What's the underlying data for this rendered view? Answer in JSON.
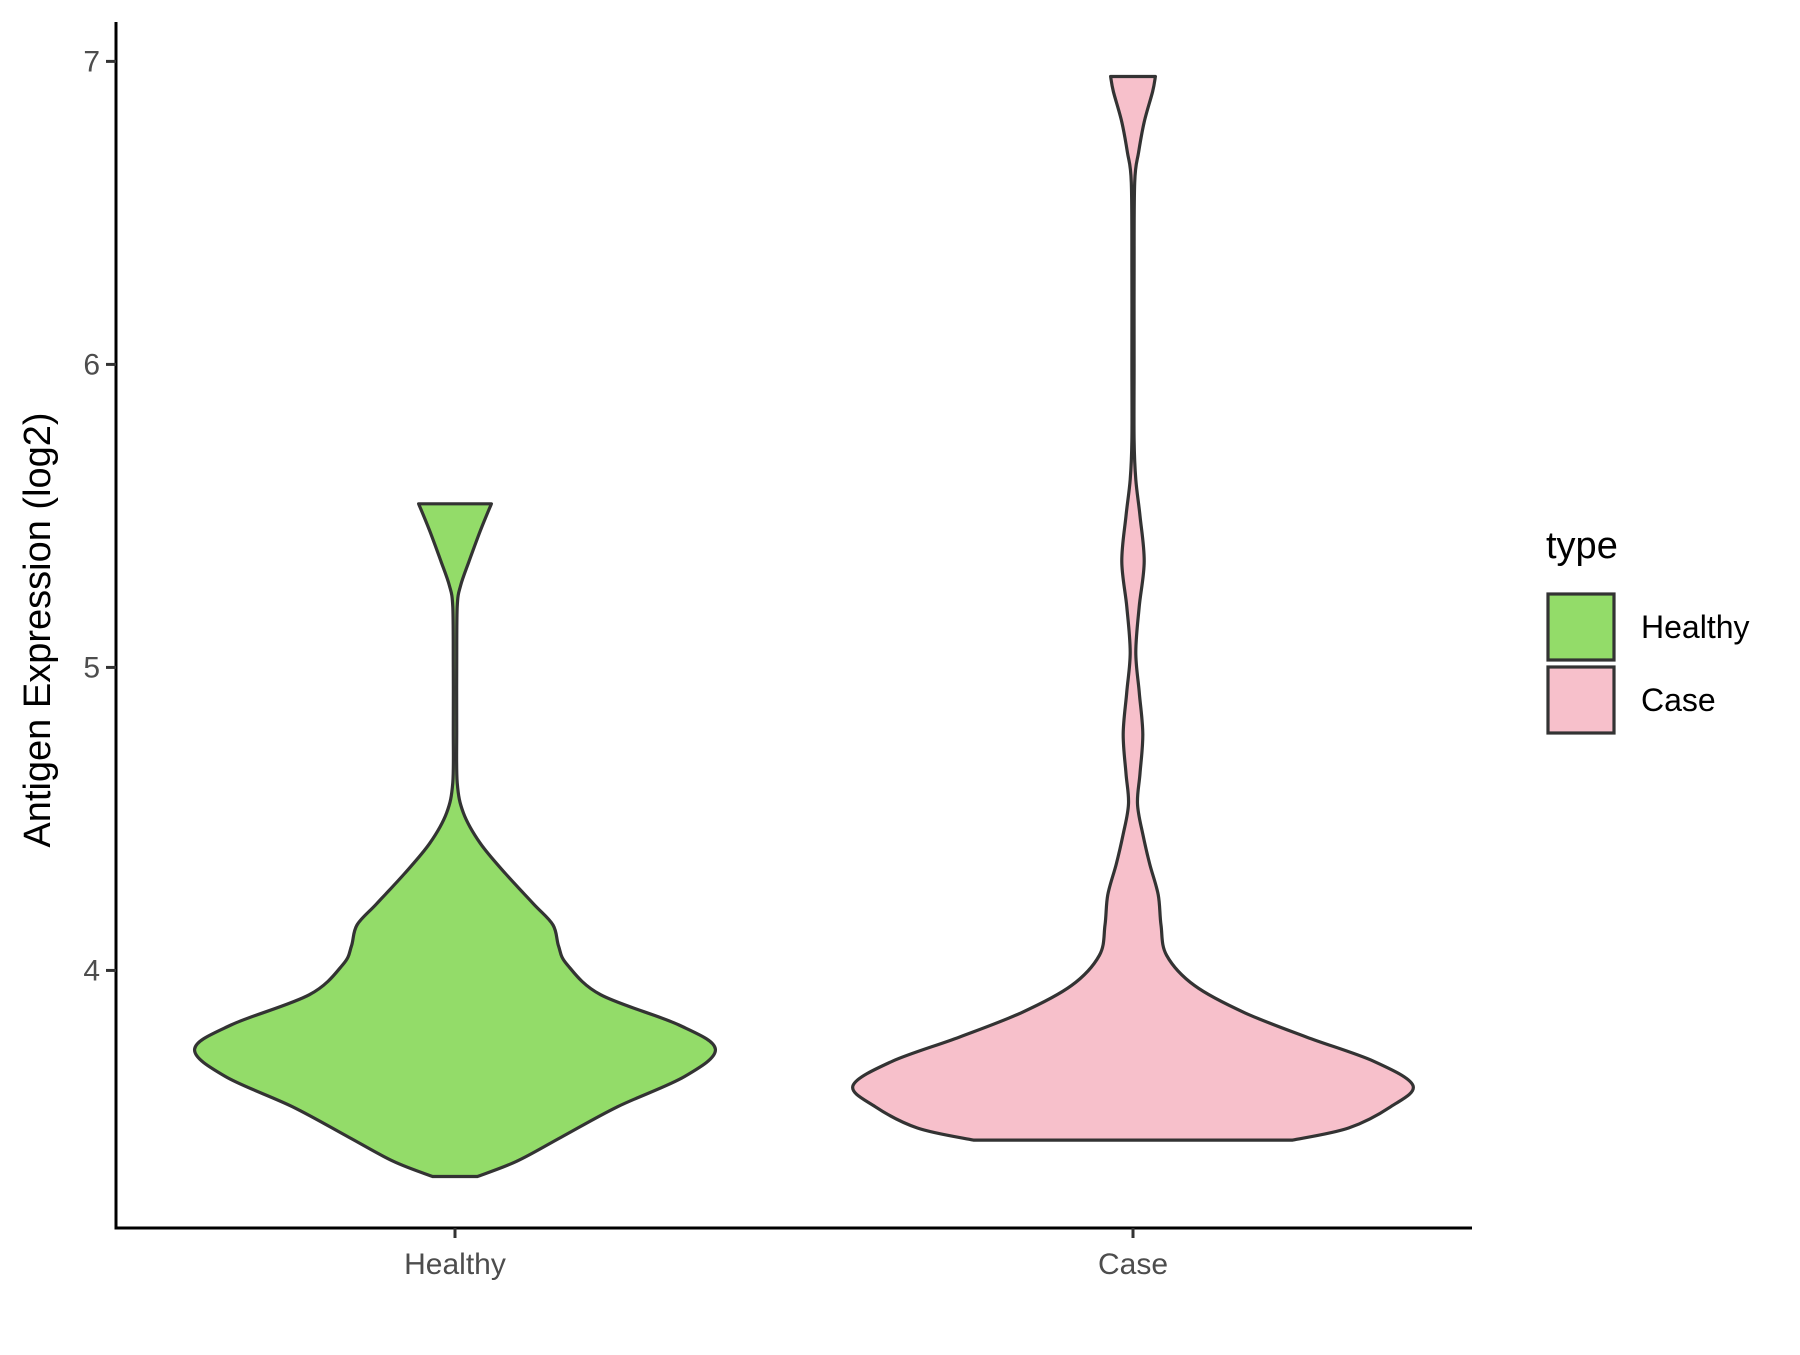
{
  "chart_data": {
    "type": "violin",
    "categories": [
      "Healthy",
      "Case"
    ],
    "ylabel": "Antigen Expression (log2)",
    "xlabel": "",
    "ylim": [
      3.15,
      7.13
    ],
    "yticks": [
      4,
      5,
      6,
      7
    ],
    "grid": false,
    "legend": {
      "title": "type",
      "position": "right",
      "entries": [
        {
          "label": "Healthy",
          "color": "#93dc69"
        },
        {
          "label": "Case",
          "color": "#f7c0cb"
        }
      ]
    },
    "series": [
      {
        "name": "Healthy",
        "color": "#93dc69",
        "y_min": 3.32,
        "y_max": 5.54,
        "density": [
          [
            3.32,
            0.08
          ],
          [
            3.37,
            0.22
          ],
          [
            3.45,
            0.38
          ],
          [
            3.55,
            0.58
          ],
          [
            3.65,
            0.82
          ],
          [
            3.74,
            0.93
          ],
          [
            3.82,
            0.8
          ],
          [
            3.92,
            0.52
          ],
          [
            4.02,
            0.4
          ],
          [
            4.08,
            0.37
          ],
          [
            4.15,
            0.35
          ],
          [
            4.22,
            0.28
          ],
          [
            4.32,
            0.18
          ],
          [
            4.42,
            0.09
          ],
          [
            4.52,
            0.03
          ],
          [
            4.62,
            0.008
          ],
          [
            4.8,
            0.006
          ],
          [
            5.0,
            0.006
          ],
          [
            5.2,
            0.008
          ],
          [
            5.27,
            0.02
          ],
          [
            5.35,
            0.05
          ],
          [
            5.45,
            0.09
          ],
          [
            5.54,
            0.13
          ]
        ]
      },
      {
        "name": "Case",
        "color": "#f7c0cb",
        "y_min": 3.44,
        "y_max": 6.95,
        "density": [
          [
            3.44,
            0.57
          ],
          [
            3.48,
            0.77
          ],
          [
            3.55,
            0.92
          ],
          [
            3.62,
            1.0
          ],
          [
            3.7,
            0.86
          ],
          [
            3.78,
            0.62
          ],
          [
            3.86,
            0.4
          ],
          [
            3.95,
            0.22
          ],
          [
            4.05,
            0.12
          ],
          [
            4.15,
            0.1
          ],
          [
            4.25,
            0.09
          ],
          [
            4.35,
            0.06
          ],
          [
            4.45,
            0.035
          ],
          [
            4.55,
            0.016
          ],
          [
            4.65,
            0.025
          ],
          [
            4.78,
            0.035
          ],
          [
            4.92,
            0.022
          ],
          [
            5.05,
            0.01
          ],
          [
            5.2,
            0.022
          ],
          [
            5.35,
            0.04
          ],
          [
            5.5,
            0.025
          ],
          [
            5.62,
            0.01
          ],
          [
            5.75,
            0.004
          ],
          [
            6.0,
            0.004
          ],
          [
            6.3,
            0.004
          ],
          [
            6.6,
            0.006
          ],
          [
            6.7,
            0.02
          ],
          [
            6.8,
            0.04
          ],
          [
            6.9,
            0.07
          ],
          [
            6.95,
            0.08
          ]
        ]
      }
    ]
  }
}
